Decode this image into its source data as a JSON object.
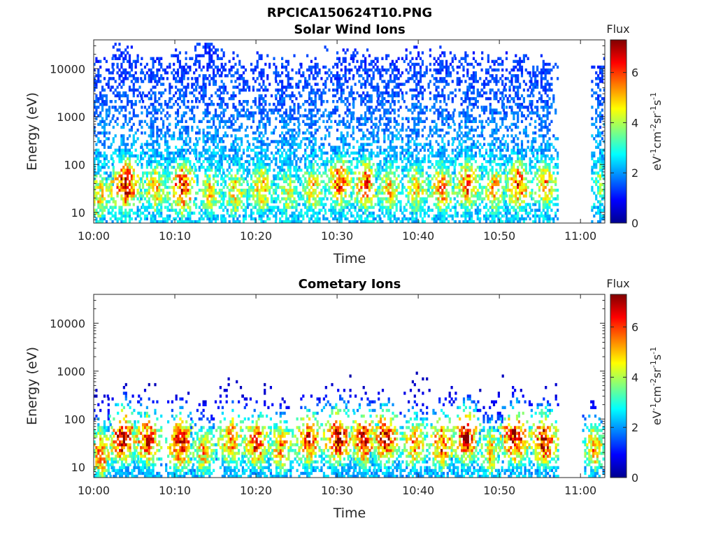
{
  "figure": {
    "title": "RPCICA150624T10.PNG"
  },
  "chart_data": [
    {
      "type": "heatmap",
      "title": "Solar Wind Ions",
      "xlabel": "Time",
      "ylabel": "Energy (eV)",
      "x_ticks": [
        "10:00",
        "10:10",
        "10:20",
        "10:30",
        "10:40",
        "10:50",
        "11:00"
      ],
      "x_range_minutes": [
        0,
        63
      ],
      "y_ticks": [
        "10",
        "100",
        "1000",
        "10000"
      ],
      "y_scale": "log",
      "y_range": [
        6,
        40000
      ],
      "colorbar": {
        "title": "Flux",
        "label": "eV-1cm-2sr-1s-1",
        "ticks": [
          "0",
          "2",
          "4",
          "6"
        ],
        "range": [
          0,
          7.3
        ],
        "colormap": "jet"
      },
      "bursts": [
        {
          "t": 0.5,
          "w": 1.8,
          "emax": 15000,
          "peak": 5.0,
          "pe": 20
        },
        {
          "t": 3.8,
          "w": 2.0,
          "emax": 25000,
          "peak": 6.8,
          "pe": 35
        },
        {
          "t": 7.5,
          "w": 1.8,
          "emax": 14000,
          "peak": 5.2,
          "pe": 30
        },
        {
          "t": 10.8,
          "w": 1.8,
          "emax": 20000,
          "peak": 6.5,
          "pe": 30
        },
        {
          "t": 14.2,
          "w": 1.8,
          "emax": 30000,
          "peak": 4.8,
          "pe": 25
        },
        {
          "t": 17.3,
          "w": 1.7,
          "emax": 15000,
          "peak": 4.9,
          "pe": 25
        },
        {
          "t": 20.6,
          "w": 1.8,
          "emax": 15000,
          "peak": 5.1,
          "pe": 30
        },
        {
          "t": 23.8,
          "w": 1.7,
          "emax": 14000,
          "peak": 4.5,
          "pe": 25
        },
        {
          "t": 26.9,
          "w": 1.7,
          "emax": 14000,
          "peak": 5.0,
          "pe": 30
        },
        {
          "t": 30.2,
          "w": 1.8,
          "emax": 20000,
          "peak": 6.0,
          "pe": 40
        },
        {
          "t": 33.4,
          "w": 1.8,
          "emax": 20000,
          "peak": 6.0,
          "pe": 35
        },
        {
          "t": 36.4,
          "w": 1.7,
          "emax": 15000,
          "peak": 5.0,
          "pe": 30
        },
        {
          "t": 39.6,
          "w": 1.7,
          "emax": 22000,
          "peak": 5.0,
          "pe": 30
        },
        {
          "t": 42.8,
          "w": 1.7,
          "emax": 20000,
          "peak": 5.6,
          "pe": 30
        },
        {
          "t": 46.0,
          "w": 1.8,
          "emax": 18000,
          "peak": 5.8,
          "pe": 35
        },
        {
          "t": 49.2,
          "w": 1.7,
          "emax": 15000,
          "peak": 5.2,
          "pe": 30
        },
        {
          "t": 52.2,
          "w": 1.8,
          "emax": 15000,
          "peak": 6.0,
          "pe": 35
        },
        {
          "t": 55.5,
          "w": 1.7,
          "emax": 15000,
          "peak": 5.4,
          "pe": 35
        },
        {
          "t": 62.3,
          "w": 1.0,
          "emax": 14000,
          "peak": 4.0,
          "pe": 40
        }
      ]
    },
    {
      "type": "heatmap",
      "title": "Cometary Ions",
      "xlabel": "Time",
      "ylabel": "Energy (eV)",
      "x_ticks": [
        "10:00",
        "10:10",
        "10:20",
        "10:30",
        "10:40",
        "10:50",
        "11:00"
      ],
      "x_range_minutes": [
        0,
        63
      ],
      "y_ticks": [
        "10",
        "100",
        "1000",
        "10000"
      ],
      "y_scale": "log",
      "y_range": [
        6,
        40000
      ],
      "colorbar": {
        "title": "Flux",
        "label": "eV-1cm-2sr-1s-1",
        "ticks": [
          "0",
          "2",
          "4",
          "6"
        ],
        "range": [
          0,
          7.3
        ],
        "colormap": "jet"
      },
      "bursts": [
        {
          "t": 0.8,
          "w": 1.6,
          "emax": 300,
          "peak": 5.8,
          "pe": 18
        },
        {
          "t": 3.5,
          "w": 1.9,
          "emax": 500,
          "peak": 7.2,
          "pe": 40
        },
        {
          "t": 6.5,
          "w": 1.8,
          "emax": 400,
          "peak": 6.5,
          "pe": 35
        },
        {
          "t": 10.6,
          "w": 1.8,
          "emax": 300,
          "peak": 6.8,
          "pe": 30
        },
        {
          "t": 13.4,
          "w": 1.5,
          "emax": 200,
          "peak": 5.2,
          "pe": 20
        },
        {
          "t": 16.8,
          "w": 1.8,
          "emax": 800,
          "peak": 5.8,
          "pe": 35
        },
        {
          "t": 20.0,
          "w": 1.8,
          "emax": 400,
          "peak": 6.2,
          "pe": 30
        },
        {
          "t": 23.0,
          "w": 1.6,
          "emax": 300,
          "peak": 5.5,
          "pe": 25
        },
        {
          "t": 26.4,
          "w": 1.7,
          "emax": 400,
          "peak": 6.4,
          "pe": 35
        },
        {
          "t": 30.0,
          "w": 2.0,
          "emax": 600,
          "peak": 7.0,
          "pe": 40
        },
        {
          "t": 33.2,
          "w": 1.8,
          "emax": 400,
          "peak": 6.8,
          "pe": 35
        },
        {
          "t": 35.8,
          "w": 1.8,
          "emax": 400,
          "peak": 6.9,
          "pe": 40
        },
        {
          "t": 39.4,
          "w": 1.7,
          "emax": 800,
          "peak": 5.5,
          "pe": 30
        },
        {
          "t": 42.8,
          "w": 1.8,
          "emax": 300,
          "peak": 6.2,
          "pe": 30
        },
        {
          "t": 45.8,
          "w": 1.8,
          "emax": 400,
          "peak": 6.8,
          "pe": 40
        },
        {
          "t": 48.8,
          "w": 1.6,
          "emax": 300,
          "peak": 5.0,
          "pe": 20
        },
        {
          "t": 51.8,
          "w": 2.0,
          "emax": 600,
          "peak": 7.0,
          "pe": 40
        },
        {
          "t": 55.4,
          "w": 1.8,
          "emax": 600,
          "peak": 6.8,
          "pe": 35
        },
        {
          "t": 61.6,
          "w": 1.4,
          "emax": 200,
          "peak": 5.5,
          "pe": 25
        }
      ]
    }
  ]
}
